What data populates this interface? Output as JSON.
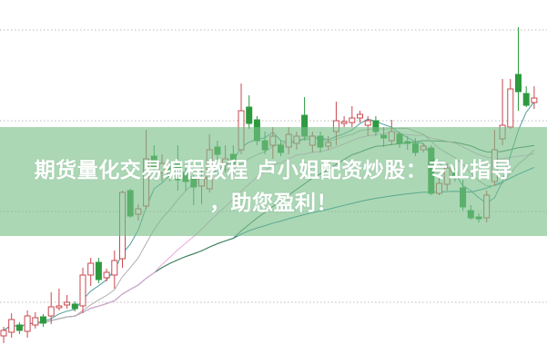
{
  "banner": {
    "title_line1": "期货量化交易编程教程 卢小姐配资炒股：专业指导",
    "title_line2": "，助您盈利！"
  },
  "colors": {
    "up": "#c9474f",
    "down": "#2e9a3f",
    "ma5": "#4f9c9c",
    "ma10": "#b0b0b0",
    "ma20": "#e8a6dc",
    "ma30": "#3d7d52",
    "ma60": "#2b8a9c",
    "grid": "#bbbbbb",
    "banner": "#78be87"
  },
  "chart_data": {
    "type": "candlestick",
    "title": "",
    "xlabel": "",
    "ylabel": "",
    "ylim": [
      0,
      400
    ],
    "grid": "dotted horizontal",
    "gridlines": [
      67,
      167,
      267,
      367
    ],
    "moving_averages": [
      5,
      10,
      20,
      30,
      60
    ],
    "ohlc": [
      [
        30,
        40,
        22,
        36
      ],
      [
        34,
        55,
        28,
        48
      ],
      [
        42,
        45,
        32,
        36
      ],
      [
        35,
        58,
        28,
        52
      ],
      [
        42,
        56,
        38,
        50
      ],
      [
        51,
        54,
        40,
        44
      ],
      [
        52,
        78,
        43,
        62
      ],
      [
        61,
        82,
        58,
        63
      ],
      [
        64,
        75,
        60,
        67
      ],
      [
        65,
        68,
        57,
        60
      ],
      [
        63,
        105,
        55,
        97
      ],
      [
        97,
        116,
        85,
        110
      ],
      [
        111,
        116,
        88,
        92
      ],
      [
        94,
        104,
        90,
        100
      ],
      [
        97,
        124,
        82,
        113
      ],
      [
        115,
        190,
        105,
        188
      ],
      [
        190,
        192,
        160,
        162
      ],
      [
        164,
        175,
        157,
        170
      ],
      [
        173,
        257,
        170,
        225
      ],
      [
        228,
        240,
        208,
        215
      ],
      [
        210,
        230,
        200,
        220
      ],
      [
        215,
        220,
        200,
        205
      ],
      [
        220,
        240,
        190,
        202
      ],
      [
        210,
        215,
        190,
        200
      ],
      [
        204,
        210,
        174,
        194
      ],
      [
        195,
        220,
        175,
        205
      ],
      [
        192,
        252,
        188,
        235
      ],
      [
        238,
        245,
        222,
        230
      ],
      [
        220,
        240,
        210,
        225
      ],
      [
        230,
        240,
        208,
        220
      ],
      [
        235,
        308,
        230,
        278
      ],
      [
        282,
        295,
        258,
        264
      ],
      [
        268,
        272,
        240,
        245
      ],
      [
        245,
        255,
        230,
        235
      ],
      [
        240,
        260,
        225,
        250
      ],
      [
        240,
        245,
        228,
        232
      ],
      [
        238,
        260,
        230,
        252
      ],
      [
        242,
        255,
        235,
        250
      ],
      [
        273,
        293,
        245,
        250
      ],
      [
        240,
        255,
        232,
        250
      ],
      [
        250,
        255,
        232,
        238
      ],
      [
        239,
        250,
        235,
        243
      ],
      [
        255,
        288,
        240,
        267
      ],
      [
        264,
        272,
        260,
        266
      ],
      [
        265,
        283,
        260,
        270
      ],
      [
        270,
        278,
        265,
        274
      ],
      [
        262,
        272,
        250,
        267
      ],
      [
        267,
        272,
        250,
        255
      ],
      [
        251,
        260,
        238,
        248
      ],
      [
        245,
        268,
        240,
        255
      ],
      [
        252,
        255,
        237,
        242
      ],
      [
        244,
        250,
        235,
        242
      ],
      [
        242,
        248,
        228,
        232
      ],
      [
        235,
        242,
        232,
        239
      ],
      [
        237,
        240,
        185,
        187
      ],
      [
        187,
        205,
        185,
        198
      ],
      [
        197,
        220,
        190,
        215
      ],
      [
        210,
        215,
        200,
        205
      ],
      [
        193,
        202,
        168,
        172
      ],
      [
        168,
        174,
        158,
        160
      ],
      [
        161,
        165,
        155,
        159
      ],
      [
        160,
        190,
        155,
        185
      ],
      [
        200,
        257,
        195,
        235
      ],
      [
        247,
        313,
        240,
        262
      ],
      [
        260,
        313,
        258,
        302
      ],
      [
        318,
        370,
        278,
        299
      ],
      [
        297,
        305,
        282,
        284
      ],
      [
        287,
        305,
        280,
        292
      ]
    ]
  }
}
